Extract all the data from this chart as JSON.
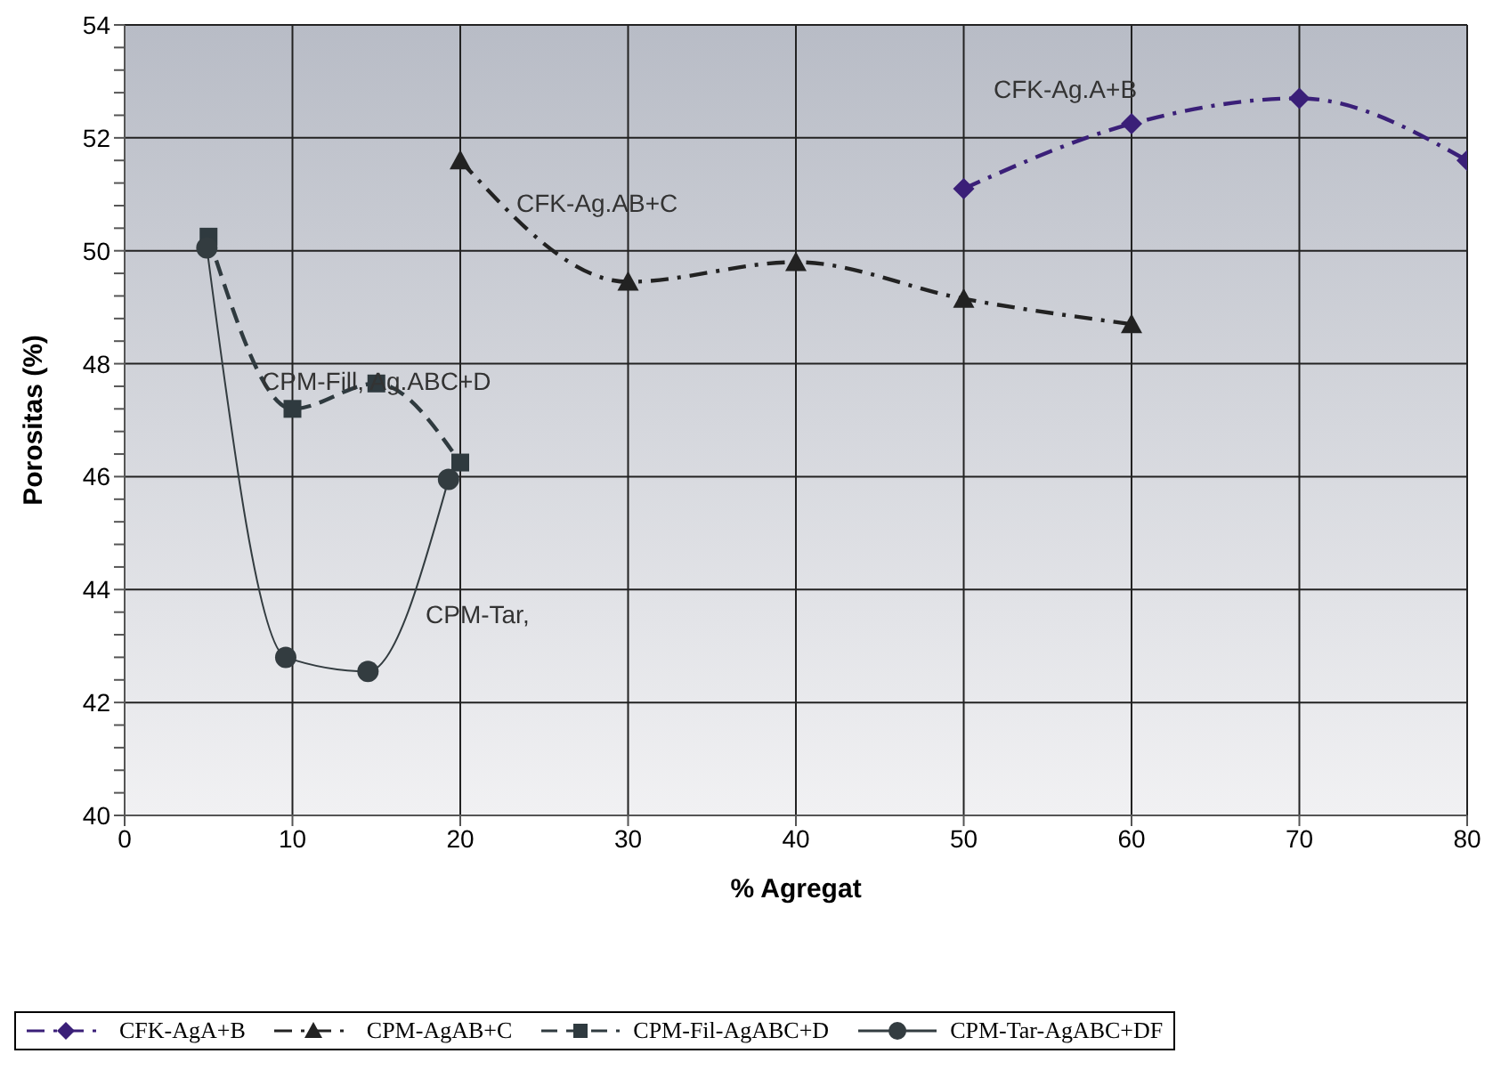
{
  "chart_data": {
    "type": "line",
    "xlabel": "% Agregat",
    "ylabel": "Porositas (%)",
    "xlim": [
      0,
      80
    ],
    "xticks": [
      0,
      10,
      20,
      30,
      40,
      50,
      60,
      70,
      80
    ],
    "ylim": [
      40,
      54
    ],
    "yticks": [
      40,
      {
        "value": 40.4,
        "label": null
      },
      {
        "value": 40.8,
        "label": null
      },
      {
        "value": 41.2,
        "label": null
      },
      {
        "value": 41.6,
        "label": null
      },
      42,
      {
        "value": 42.4,
        "label": null
      },
      {
        "value": 42.8,
        "label": null
      },
      {
        "value": 43.2,
        "label": null
      },
      {
        "value": 43.6,
        "label": null
      },
      44,
      {
        "value": 44.4,
        "label": null
      },
      {
        "value": 44.8,
        "label": null
      },
      {
        "value": 45.2,
        "label": null
      },
      {
        "value": 45.6,
        "label": null
      },
      46,
      {
        "value": 46.4,
        "label": null
      },
      {
        "value": 46.8,
        "label": null
      },
      {
        "value": 47.2,
        "label": null
      },
      {
        "value": 47.6,
        "label": null
      },
      48,
      {
        "value": 48.4,
        "label": null
      },
      {
        "value": 48.8,
        "label": null
      },
      {
        "value": 49.2,
        "label": null
      },
      {
        "value": 49.6,
        "label": null
      },
      50,
      {
        "value": 50.4,
        "label": null
      },
      {
        "value": 50.8,
        "label": null
      },
      {
        "value": 51.2,
        "label": null
      },
      {
        "value": 51.6,
        "label": null
      },
      52,
      {
        "value": 52.4,
        "label": null
      },
      {
        "value": 52.8,
        "label": null
      },
      {
        "value": 53.2,
        "label": null
      },
      {
        "value": 53.6,
        "label": null
      },
      54
    ],
    "grid": true,
    "legend": "bottom",
    "series": [
      {
        "name": "CFK-AgA+B",
        "color": "#3a1f78",
        "marker": "diamond",
        "line_style": "dashdot",
        "x": [
          50,
          60,
          70,
          80
        ],
        "values": [
          51.1,
          52.25,
          52.7,
          51.6
        ]
      },
      {
        "name": "CPM-AgAB+C",
        "color": "#222222",
        "marker": "triangle",
        "line_style": "dashdot",
        "x": [
          20,
          30,
          40,
          50,
          60
        ],
        "values": [
          51.6,
          49.45,
          49.8,
          49.15,
          48.7
        ]
      },
      {
        "name": "CPM-Fil-AgABC+D",
        "color": "#2f3a3f",
        "marker": "square",
        "line_style": "dashed",
        "x": [
          5,
          10,
          15,
          20
        ],
        "values": [
          50.25,
          47.2,
          47.65,
          46.25
        ]
      },
      {
        "name": "CPM-Tar-AgABC+DF",
        "color": "#333c40",
        "marker": "circle",
        "line_style": "solid",
        "x": [
          4.9,
          9.6,
          14.5,
          19.3
        ],
        "values": [
          50.05,
          42.8,
          42.55,
          45.95
        ]
      }
    ],
    "annotations": [
      "CFK-Ag.A+B",
      "CFK-Ag.AB+C",
      "CPM-Fill, Ag.ABC+D",
      "CPM-Tar,"
    ]
  }
}
